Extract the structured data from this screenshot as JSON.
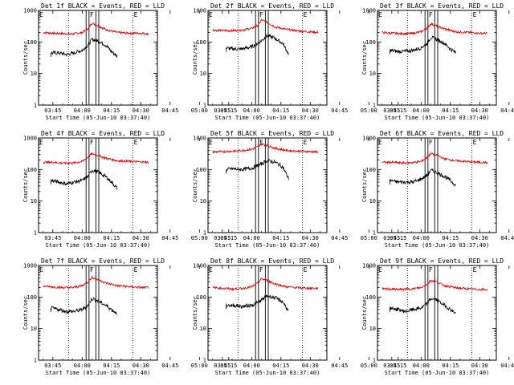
{
  "colors": {
    "events": "#000000",
    "lld": "#e00000",
    "frame": "#000000"
  },
  "common": {
    "xlabel": "Start Time (05-Jun-10 03:37:40)",
    "ylabel": "Counts/sec",
    "x_ticks": [
      "03:45",
      "04:00",
      "04:15",
      "04:30",
      "04:45",
      "05:00",
      "05:15"
    ],
    "y_ticks": [
      "1",
      "10",
      "100",
      "1000"
    ],
    "xlim_minutes": [
      37.67,
      98.5
    ],
    "ylim": [
      1,
      1000
    ],
    "yscale": "log",
    "markers": [
      "E",
      "F",
      "E"
    ],
    "dotted_lines_minutes": [
      53,
      86
    ],
    "solid_lines_minutes": [
      62,
      63.5,
      67,
      68.5
    ]
  },
  "chart_data": [
    {
      "type": "line",
      "title": "Det 1f BLACK = Events, RED = LLD",
      "series": [
        {
          "name": "LLD",
          "x": [
            40,
            45,
            50,
            55,
            60,
            63,
            65,
            68,
            72,
            78,
            85,
            90,
            94
          ],
          "values": [
            200,
            190,
            185,
            180,
            200,
            260,
            400,
            330,
            250,
            200,
            190,
            190,
            180
          ]
        },
        {
          "name": "Events",
          "x": [
            44,
            48,
            52,
            56,
            60,
            63,
            65,
            68,
            72,
            75,
            78
          ],
          "values": [
            45,
            45,
            40,
            45,
            55,
            80,
            120,
            110,
            80,
            50,
            35
          ]
        }
      ]
    },
    {
      "type": "line",
      "title": "Det 2f BLACK = Events, RED = LLD",
      "series": [
        {
          "name": "LLD",
          "x": [
            40,
            45,
            50,
            55,
            60,
            63,
            65,
            68,
            72,
            78,
            85,
            90,
            94
          ],
          "values": [
            240,
            230,
            230,
            240,
            270,
            330,
            500,
            420,
            300,
            250,
            220,
            210,
            200
          ]
        },
        {
          "name": "Events",
          "x": [
            47,
            50,
            55,
            60,
            63,
            65,
            68,
            72,
            76,
            79
          ],
          "values": [
            65,
            60,
            60,
            70,
            90,
            110,
            160,
            130,
            90,
            40
          ]
        }
      ]
    },
    {
      "type": "line",
      "title": "Det 3f BLACK = Events, RED = LLD",
      "series": [
        {
          "name": "LLD",
          "x": [
            40,
            45,
            50,
            55,
            60,
            63,
            65,
            68,
            72,
            78,
            85,
            90,
            94
          ],
          "values": [
            200,
            190,
            185,
            185,
            210,
            280,
            380,
            320,
            260,
            210,
            200,
            190,
            190
          ]
        },
        {
          "name": "Events",
          "x": [
            44,
            48,
            52,
            56,
            60,
            63,
            65,
            68,
            72,
            75,
            78
          ],
          "values": [
            55,
            50,
            50,
            55,
            65,
            90,
            140,
            120,
            90,
            60,
            45
          ]
        }
      ]
    },
    {
      "type": "line",
      "title": "Det 4f BLACK = Events, RED = LLD",
      "series": [
        {
          "name": "LLD",
          "x": [
            40,
            45,
            50,
            55,
            60,
            63,
            65,
            68,
            72,
            78,
            85,
            90,
            94
          ],
          "values": [
            170,
            170,
            160,
            160,
            180,
            250,
            320,
            280,
            230,
            190,
            180,
            175,
            170
          ]
        },
        {
          "name": "Events",
          "x": [
            44,
            48,
            52,
            56,
            60,
            63,
            65,
            68,
            72,
            75,
            78
          ],
          "values": [
            45,
            40,
            35,
            40,
            45,
            60,
            95,
            85,
            60,
            40,
            25
          ]
        }
      ]
    },
    {
      "type": "line",
      "title": "Det 5f BLACK = Events, RED = LLD",
      "series": [
        {
          "name": "LLD",
          "x": [
            40,
            45,
            50,
            55,
            60,
            63,
            65,
            68,
            72,
            78,
            85,
            90,
            94
          ],
          "values": [
            360,
            370,
            380,
            400,
            440,
            520,
            650,
            580,
            470,
            400,
            380,
            370,
            360
          ]
        },
        {
          "name": "Events",
          "x": [
            47,
            50,
            55,
            60,
            63,
            65,
            68,
            72,
            76,
            79
          ],
          "values": [
            100,
            105,
            100,
            110,
            130,
            150,
            190,
            170,
            120,
            50
          ]
        }
      ]
    },
    {
      "type": "line",
      "title": "Det 6f BLACK = Events, RED = LLD",
      "series": [
        {
          "name": "LLD",
          "x": [
            40,
            45,
            50,
            55,
            60,
            63,
            65,
            68,
            72,
            78,
            85,
            90,
            94
          ],
          "values": [
            170,
            170,
            160,
            165,
            180,
            240,
            320,
            280,
            220,
            190,
            175,
            170,
            165
          ]
        },
        {
          "name": "Events",
          "x": [
            44,
            48,
            52,
            56,
            60,
            63,
            65,
            68,
            72,
            75,
            78
          ],
          "values": [
            45,
            40,
            40,
            40,
            50,
            65,
            95,
            80,
            60,
            45,
            30
          ]
        }
      ]
    },
    {
      "type": "line",
      "title": "Det 7f BLACK = Events, RED = LLD",
      "series": [
        {
          "name": "LLD",
          "x": [
            40,
            45,
            50,
            55,
            60,
            63,
            65,
            68,
            72,
            78,
            85,
            90,
            94
          ],
          "values": [
            220,
            210,
            200,
            200,
            230,
            300,
            420,
            360,
            280,
            230,
            210,
            200,
            200
          ]
        },
        {
          "name": "Events",
          "x": [
            44,
            48,
            52,
            56,
            60,
            63,
            65,
            68,
            72,
            75,
            78
          ],
          "values": [
            45,
            40,
            35,
            35,
            40,
            55,
            90,
            75,
            55,
            40,
            30
          ]
        }
      ]
    },
    {
      "type": "line",
      "title": "Det 8f BLACK = Events, RED = LLD",
      "series": [
        {
          "name": "LLD",
          "x": [
            40,
            45,
            50,
            55,
            60,
            63,
            65,
            68,
            72,
            78,
            85,
            90,
            94
          ],
          "values": [
            200,
            190,
            180,
            185,
            210,
            270,
            380,
            330,
            260,
            210,
            195,
            190,
            190
          ]
        },
        {
          "name": "Events",
          "x": [
            47,
            50,
            55,
            60,
            63,
            65,
            68,
            72,
            76,
            79
          ],
          "values": [
            55,
            55,
            50,
            55,
            65,
            80,
            110,
            95,
            70,
            35
          ]
        }
      ]
    },
    {
      "type": "line",
      "title": "Det 9f BLACK = Events, RED = LLD",
      "series": [
        {
          "name": "LLD",
          "x": [
            40,
            45,
            50,
            55,
            60,
            63,
            65,
            68,
            72,
            78,
            85,
            90,
            94
          ],
          "values": [
            180,
            180,
            175,
            180,
            200,
            250,
            340,
            300,
            230,
            195,
            180,
            175,
            170
          ]
        },
        {
          "name": "Events",
          "x": [
            44,
            48,
            52,
            56,
            60,
            63,
            65,
            68,
            72,
            75,
            78
          ],
          "values": [
            45,
            40,
            35,
            40,
            45,
            60,
            90,
            80,
            55,
            40,
            30
          ]
        }
      ]
    }
  ]
}
